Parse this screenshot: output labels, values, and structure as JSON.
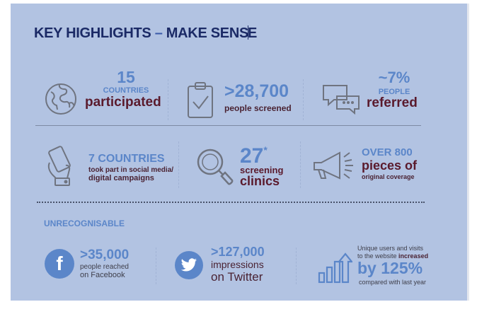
{
  "title": {
    "part1": "KEY HIGHLIGHTS ",
    "dash": "–",
    "part2": " MAKE SENS",
    "part3": "E"
  },
  "row1": {
    "countries": {
      "number": "15",
      "label": "COUNTRIES",
      "sub": "participated",
      "icon": "globe-icon"
    },
    "screened": {
      "number": ">28,700",
      "sub": "people screened",
      "icon": "clipboard-check-icon"
    },
    "referred": {
      "number": "~7%",
      "label": "PEOPLE",
      "sub": "referred",
      "icon": "chat-bubbles-icon"
    }
  },
  "row2": {
    "campaigns": {
      "number": "7 COUNTRIES",
      "line1": "took part in social media/",
      "line2": "digital campaigns",
      "icon": "hand-phone-icon"
    },
    "clinics": {
      "number": "27",
      "sup": "*",
      "line1": "screening",
      "line2": "clinics",
      "icon": "magnifier-icon"
    },
    "coverage": {
      "number": "OVER 800",
      "line1": "pieces of",
      "line2": "original coverage",
      "icon": "megaphone-icon"
    }
  },
  "section_label": "UNRECOGNISABLE",
  "row3": {
    "facebook": {
      "number": ">35,000",
      "line1": "people reached",
      "line2": "on Facebook",
      "icon": "facebook-icon",
      "glyph": "f"
    },
    "twitter": {
      "number": ">127,000",
      "line1": "impressions",
      "line2": "on Twitter",
      "icon": "twitter-icon"
    },
    "website": {
      "line1": "Unique users and visits",
      "line2a": "to the website ",
      "line2b": "increased",
      "big": "by 125%",
      "line3": "compared with last year",
      "icon": "growth-chart-icon"
    }
  }
}
